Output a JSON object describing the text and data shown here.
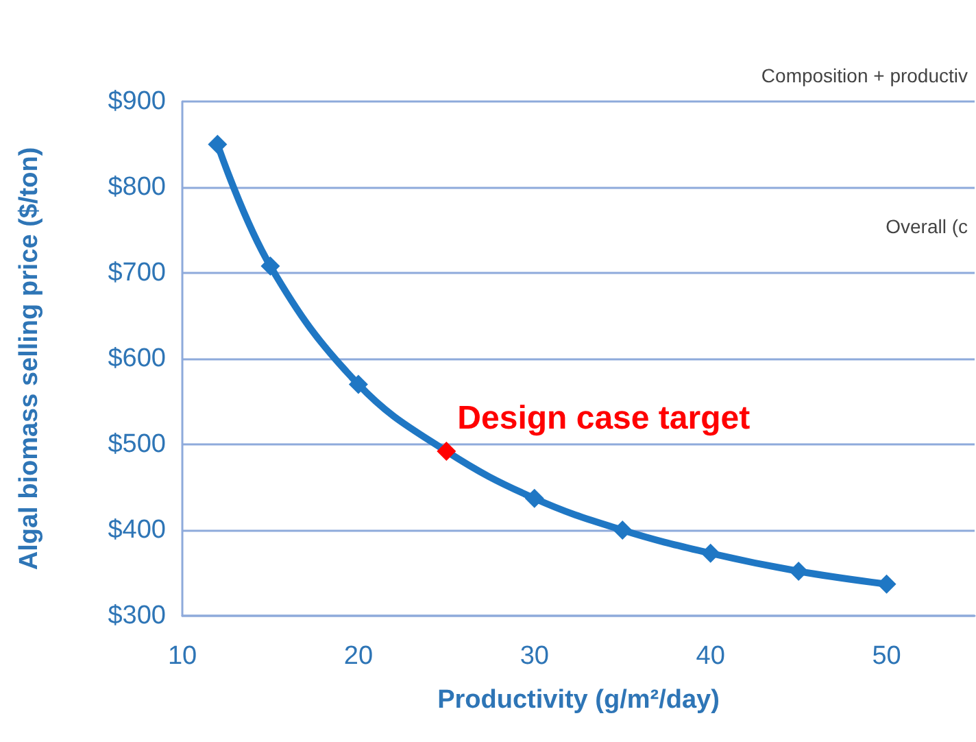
{
  "chart_data": {
    "type": "line",
    "xlabel": "Productivity (g/m²/day)",
    "ylabel": "Algal biomass selling price ($/ton)",
    "x": [
      12,
      15,
      20,
      25,
      30,
      35,
      40,
      45,
      50
    ],
    "series": [
      {
        "color": "#1f77c4",
        "colors": [
          "#1f77c4",
          "#1f77c4",
          "#1f77c4",
          "#ff0000",
          "#1f77c4",
          "#1f77c4",
          "#1f77c4",
          "#1f77c4",
          "#1f77c4"
        ],
        "values": [
          850,
          708,
          570,
          492,
          437,
          400,
          373,
          352,
          337
        ]
      }
    ],
    "xlim": [
      10,
      55
    ],
    "xticks": [
      10,
      20,
      30,
      40,
      50
    ],
    "ylim": [
      300,
      900
    ],
    "yticks": [
      {
        "value": 300,
        "label": "$300"
      },
      {
        "value": 400,
        "label": "$400"
      },
      {
        "value": 500,
        "label": "$500"
      },
      {
        "value": 600,
        "label": "$600"
      },
      {
        "value": 700,
        "label": "$700"
      },
      {
        "value": 800,
        "label": "$800"
      },
      {
        "value": 900,
        "label": "$900"
      }
    ],
    "grid": "y",
    "marker": "diamond",
    "line_style": "solid",
    "annotations": [
      {
        "text": "Design case target",
        "x": 25,
        "y": 492
      },
      "Composition + productiv",
      "Overall (c"
    ]
  }
}
